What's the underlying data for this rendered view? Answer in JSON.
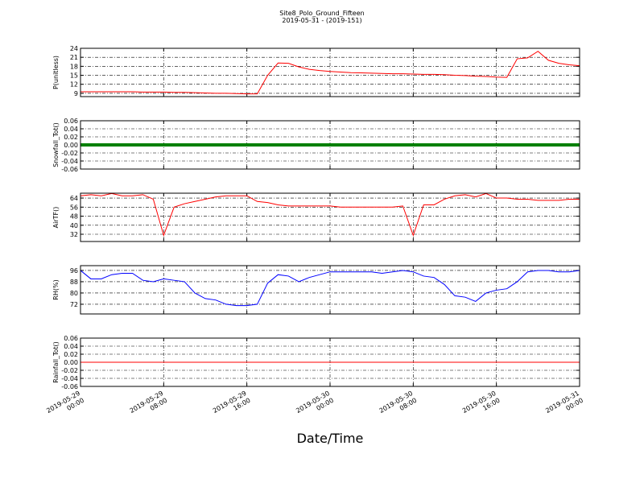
{
  "chart_data": {
    "type": "line",
    "title": "Site8_Polo_Ground_Fifteen",
    "subtitle": "2019-05-31 - (2019-151)",
    "xlabel": "Date/Time",
    "grid": true,
    "xlim": [
      "2019-05-29 00:00",
      "2019-05-31 00:00"
    ],
    "xticks": [
      "2019-05-29 00:00",
      "2019-05-29 08:00",
      "2019-05-29 16:00",
      "2019-05-30 00:00",
      "2019-05-30 08:00",
      "2019-05-30 16:00",
      "2019-05-31 00:00"
    ],
    "x": [
      "2019-05-29 00:00",
      "2019-05-29 01:00",
      "2019-05-29 02:00",
      "2019-05-29 03:00",
      "2019-05-29 04:00",
      "2019-05-29 05:00",
      "2019-05-29 06:00",
      "2019-05-29 07:00",
      "2019-05-29 08:00",
      "2019-05-29 09:00",
      "2019-05-29 10:00",
      "2019-05-29 11:00",
      "2019-05-29 12:00",
      "2019-05-29 13:00",
      "2019-05-29 14:00",
      "2019-05-29 15:00",
      "2019-05-29 16:00",
      "2019-05-29 17:00",
      "2019-05-29 18:00",
      "2019-05-29 19:00",
      "2019-05-29 20:00",
      "2019-05-29 21:00",
      "2019-05-29 22:00",
      "2019-05-29 23:00",
      "2019-05-30 00:00",
      "2019-05-30 01:00",
      "2019-05-30 02:00",
      "2019-05-30 03:00",
      "2019-05-30 04:00",
      "2019-05-30 05:00",
      "2019-05-30 06:00",
      "2019-05-30 07:00",
      "2019-05-30 08:00",
      "2019-05-30 09:00",
      "2019-05-30 10:00",
      "2019-05-30 11:00",
      "2019-05-30 12:00",
      "2019-05-30 13:00",
      "2019-05-30 14:00",
      "2019-05-30 15:00",
      "2019-05-30 16:00",
      "2019-05-30 17:00",
      "2019-05-30 18:00",
      "2019-05-30 19:00",
      "2019-05-30 20:00",
      "2019-05-30 21:00",
      "2019-05-30 22:00",
      "2019-05-30 23:00",
      "2019-05-31 00:00"
    ],
    "panels": [
      {
        "ylabel": "P(unitless)",
        "ylim": [
          7.9,
          24
        ],
        "yticks": [
          9,
          12,
          15,
          18,
          21,
          24
        ],
        "series": [
          {
            "color": "#ff0000",
            "linewidth": 1,
            "values": [
              9.5,
              9.5,
              9.5,
              9.5,
              9.5,
              9.5,
              9.4,
              9.4,
              9.4,
              9.3,
              9.3,
              9.2,
              9.1,
              9.0,
              9.0,
              8.9,
              8.8,
              8.8,
              15,
              19.1,
              19.0,
              17.8,
              17.0,
              16.6,
              16.3,
              16.1,
              15.9,
              15.8,
              15.7,
              15.6,
              15.5,
              15.5,
              15.4,
              15.3,
              15.3,
              15.2,
              15.0,
              14.9,
              14.7,
              14.6,
              14.4,
              14.3,
              20.5,
              20.8,
              23.0,
              20.0,
              19.0,
              18.5,
              18.2
            ]
          }
        ]
      },
      {
        "ylabel": "Snowfall_Tot()",
        "ylim": [
          -0.06,
          0.06
        ],
        "yticks": [
          -0.06,
          -0.04,
          -0.02,
          0.0,
          0.02,
          0.04,
          0.06
        ],
        "ytick_labels": [
          "-0.06",
          "-0.04",
          "-0.02",
          "0.00",
          "0.02",
          "0.04",
          "0.06"
        ],
        "series": [
          {
            "color": "#008000",
            "linewidth": 4,
            "values": [
              0,
              0,
              0,
              0,
              0,
              0,
              0,
              0,
              0,
              0,
              0,
              0,
              0,
              0,
              0,
              0,
              0,
              0,
              0,
              0,
              0,
              0,
              0,
              0,
              0,
              0,
              0,
              0,
              0,
              0,
              0,
              0,
              0,
              0,
              0,
              0,
              0,
              0,
              0,
              0,
              0,
              0,
              0,
              0,
              0,
              0,
              0,
              0,
              0
            ]
          }
        ]
      },
      {
        "ylabel": "AirTF()",
        "ylim": [
          25.6,
          68.3
        ],
        "yticks": [
          32,
          40,
          48,
          56,
          64
        ],
        "series": [
          {
            "color": "#ff0000",
            "linewidth": 1,
            "values": [
              66,
              67,
              66,
              68,
              66,
              66,
              67,
              63,
              31,
              56,
              59,
              61,
              63,
              65,
              66,
              66,
              66,
              61,
              60,
              58,
              57,
              57,
              57,
              57,
              57,
              56,
              56,
              56,
              56,
              56,
              56,
              57,
              31,
              58,
              58,
              63,
              66,
              67,
              65,
              68,
              64,
              64,
              63,
              63,
              62,
              62,
              62,
              63,
              63
            ]
          }
        ]
      },
      {
        "ylabel": "RH(%)",
        "ylim": [
          65.1,
          99.4
        ],
        "yticks": [
          72,
          80,
          88,
          96
        ],
        "series": [
          {
            "color": "#0000ff",
            "linewidth": 1,
            "values": [
              96,
              90,
              90,
              93,
              94,
              94,
              89,
              88,
              90,
              89,
              88,
              80,
              76,
              75,
              72,
              71,
              71,
              72,
              87,
              93,
              92,
              88,
              91,
              93,
              95,
              95,
              95,
              95,
              95,
              94,
              95,
              96,
              95,
              92,
              91,
              86,
              78,
              77,
              74,
              80,
              82,
              83,
              88,
              95,
              96,
              96,
              95,
              95,
              96
            ]
          }
        ]
      },
      {
        "ylabel": "Rainfall_Tot()",
        "ylim": [
          -0.06,
          0.06
        ],
        "yticks": [
          -0.06,
          -0.04,
          -0.02,
          0.0,
          0.02,
          0.04,
          0.06
        ],
        "ytick_labels": [
          "-0.06",
          "-0.04",
          "-0.02",
          "0.00",
          "0.02",
          "0.04",
          "0.06"
        ],
        "series": [
          {
            "color": "#ff0000",
            "linewidth": 1,
            "values": [
              0,
              0,
              0,
              0,
              0,
              0,
              0,
              0,
              0,
              0,
              0,
              0,
              0,
              0,
              0,
              0,
              0,
              0,
              0,
              0,
              0,
              0,
              0,
              0,
              0,
              0,
              0,
              0,
              0,
              0,
              0,
              0,
              0,
              0,
              0,
              0,
              0,
              0,
              0,
              0,
              0,
              0,
              0,
              0,
              0,
              0,
              0,
              0,
              0
            ]
          }
        ]
      }
    ]
  }
}
